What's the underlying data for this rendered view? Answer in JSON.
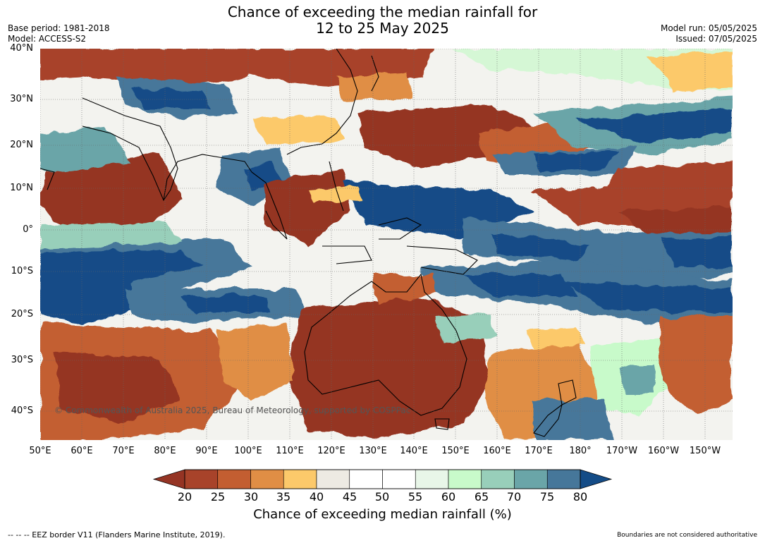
{
  "header": {
    "title_line1": "Chance of exceeding the median rainfall for",
    "title_line2": "12 to 25 May 2025",
    "base_period": "Base period: 1981-2018",
    "model": "Model: ACCESS-S2",
    "model_run": "Model run: 05/05/2025",
    "issued": "Issued: 07/05/2025"
  },
  "map": {
    "lat_labels": [
      "40°N",
      "30°N",
      "20°N",
      "10°N",
      "0°",
      "10°S",
      "20°S",
      "30°S",
      "40°S"
    ],
    "lon_labels": [
      "50°E",
      "60°E",
      "70°E",
      "80°E",
      "90°E",
      "100°E",
      "110°E",
      "120°E",
      "130°E",
      "140°E",
      "150°E",
      "160°E",
      "170°E",
      "180°",
      "170°W",
      "160°W",
      "150°W"
    ],
    "copyright": "© Commonwealth of Australia 2025, Bureau of Meteorology, supported by COSPPac"
  },
  "colorbar": {
    "tick_labels": [
      "20",
      "25",
      "30",
      "35",
      "40",
      "45",
      "50",
      "55",
      "60",
      "65",
      "70",
      "75",
      "80"
    ],
    "label": "Chance of exceeding median rainfall (%)",
    "colors": {
      "below20": "#953424",
      "bins": [
        "#A8432A",
        "#C35E31",
        "#E08E45",
        "#FCC96A",
        "#EDEAE3",
        "#FFFFFF",
        "#FFFFFF",
        "#E8F6E8",
        "#C8FACA",
        "#98CFBA",
        "#6AA5A8",
        "#46779A"
      ],
      "above80": "#144C87"
    }
  },
  "footer": {
    "eez_note": "--  --  -- EEZ border V11 (Flanders Marine Institute, 2019).",
    "boundaries_note": "Boundaries are not considered authoritative"
  }
}
